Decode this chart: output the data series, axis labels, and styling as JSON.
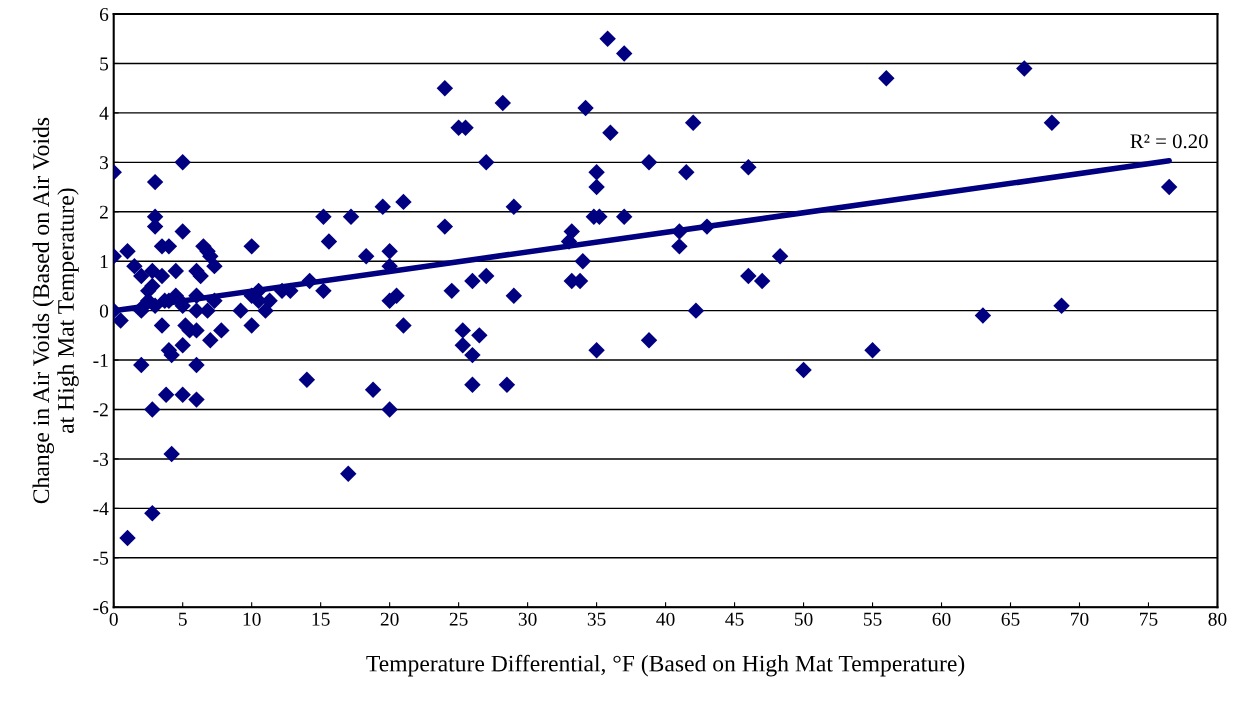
{
  "chart_data": {
    "type": "scatter",
    "xlabel": "Temperature Differential, °F (Based on High Mat Temperature)",
    "ylabel": "Change in Air Voids (Based on Air Voids\nat High Mat Temperature)",
    "xlim": [
      0,
      80
    ],
    "xticks": [
      0,
      5,
      10,
      15,
      20,
      25,
      30,
      35,
      40,
      45,
      50,
      55,
      60,
      65,
      70,
      75,
      80
    ],
    "ylim": [
      -6,
      6
    ],
    "yticks": [
      -6,
      -5,
      -4,
      -3,
      -2,
      -1,
      0,
      1,
      2,
      3,
      4,
      5,
      6
    ],
    "grid": "y",
    "annotations": [
      {
        "text": "R² = 0.20",
        "x": 76.5,
        "y": 3.03
      }
    ],
    "series": [
      {
        "color": "#000080",
        "marker": "diamond",
        "x": [
          0,
          0,
          0,
          0.5,
          1,
          1,
          1.5,
          2,
          2,
          2,
          2.2,
          2.5,
          2.5,
          2.8,
          2.8,
          2.8,
          2.8,
          3,
          3,
          3,
          3,
          3.5,
          3.5,
          3.5,
          3.7,
          3.8,
          4,
          4,
          4,
          4.2,
          4.2,
          4.5,
          4.5,
          4.8,
          5,
          5,
          5,
          5,
          5,
          5.2,
          5.5,
          6,
          6,
          6,
          6,
          6,
          6,
          6.3,
          6.5,
          6.8,
          6.8,
          7,
          7,
          7.3,
          7.3,
          7.8,
          9.2,
          10,
          10,
          10,
          10.5,
          10.5,
          11,
          11.3,
          12.2,
          12.8,
          14,
          14.2,
          15.2,
          15.2,
          15.6,
          17,
          17.2,
          18.3,
          18.8,
          19.5,
          20,
          20,
          20,
          20,
          20.5,
          21,
          21,
          24,
          24,
          24.5,
          25,
          25.5,
          25.3,
          25.3,
          26,
          26,
          26,
          26.5,
          27,
          27,
          28.2,
          28.5,
          29,
          29,
          33,
          33.2,
          33.2,
          33.8,
          34,
          34.2,
          34.8,
          35,
          35,
          35.2,
          35,
          35.8,
          36,
          37,
          37,
          38.8,
          38.8,
          41,
          41,
          41.5,
          42,
          42.2,
          43,
          46,
          46,
          47,
          48.3,
          50,
          55,
          56,
          63,
          66,
          68,
          68.7,
          76.5
        ],
        "values": [
          2.8,
          1.1,
          0,
          -0.2,
          1.2,
          -4.6,
          0.9,
          0.7,
          0,
          -1.1,
          0.1,
          0.4,
          0.2,
          0.5,
          0.8,
          -2.0,
          -4.1,
          2.6,
          1.9,
          1.7,
          0.1,
          1.3,
          -0.3,
          0.7,
          0.2,
          -1.7,
          1.3,
          0.2,
          -0.8,
          -0.9,
          -2.9,
          0.8,
          0.3,
          0.2,
          3.0,
          1.6,
          0.1,
          -0.7,
          -1.7,
          -0.3,
          -0.4,
          0.8,
          0.3,
          0,
          -0.4,
          -1.1,
          -1.8,
          0.7,
          1.3,
          1.2,
          0,
          1.1,
          -0.6,
          0.9,
          0.2,
          -0.4,
          0,
          1.3,
          0.3,
          -0.3,
          0.4,
          0.2,
          0,
          0.2,
          0.4,
          0.4,
          -1.4,
          0.6,
          1.9,
          0.4,
          1.4,
          -3.3,
          1.9,
          1.1,
          -1.6,
          2.1,
          1.2,
          0.9,
          0.2,
          -2.0,
          0.3,
          2.2,
          -0.3,
          4.5,
          1.7,
          0.4,
          3.7,
          3.7,
          -0.4,
          -0.7,
          0.6,
          -0.9,
          -1.5,
          -0.5,
          3.0,
          0.7,
          4.2,
          -1.5,
          2.1,
          0.3,
          1.4,
          1.6,
          0.6,
          0.6,
          1.0,
          4.1,
          1.9,
          2.8,
          2.5,
          1.9,
          -0.8,
          5.5,
          3.6,
          5.2,
          1.9,
          3.0,
          -0.6,
          1.6,
          1.3,
          2.8,
          3.8,
          0,
          1.7,
          2.9,
          0.7,
          0.6,
          1.1,
          -1.2,
          -0.8,
          4.7,
          -0.1,
          4.9,
          3.8,
          0.1,
          2.5
        ]
      },
      {
        "type": "line",
        "color": "#000080",
        "marker": "none",
        "line_style": "solid",
        "x": [
          0,
          76.5
        ],
        "values": [
          0,
          3.03
        ]
      }
    ]
  }
}
